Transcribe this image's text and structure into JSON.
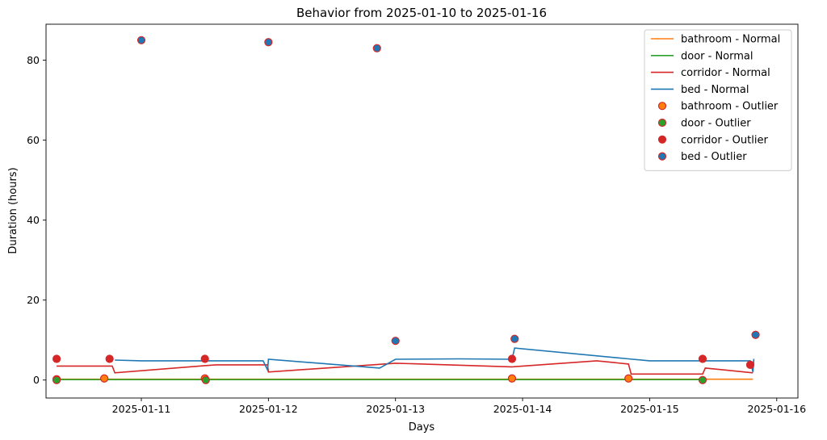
{
  "chart_data": {
    "type": "line",
    "title": "Behavior from 2025-01-10 to 2025-01-16",
    "xlabel": "Days",
    "ylabel": "Duration (hours)",
    "x_axis_type": "date",
    "xlim": [
      "2025-01-10 06:00",
      "2025-01-16 04:00"
    ],
    "ylim": [
      -4.5,
      89
    ],
    "xticks": [
      "2025-01-11",
      "2025-01-12",
      "2025-01-13",
      "2025-01-14",
      "2025-01-15",
      "2025-01-16"
    ],
    "yticks": [
      0,
      20,
      40,
      60,
      80
    ],
    "legend_position": "top-right",
    "grid": false,
    "series": [
      {
        "name": "bathroom - Normal",
        "kind": "line",
        "color": "#ff7f0e",
        "points": [
          {
            "x": "2025-01-10 08:00",
            "y": 0.2
          },
          {
            "x": "2025-01-15 19:30",
            "y": 0.2
          }
        ]
      },
      {
        "name": "door - Normal",
        "kind": "line",
        "color": "#2ca02c",
        "points": [
          {
            "x": "2025-01-10 08:00",
            "y": 0.1
          },
          {
            "x": "2025-01-15 10:00",
            "y": 0.1
          }
        ]
      },
      {
        "name": "corridor - Normal",
        "kind": "line",
        "color": "#d62728",
        "points": [
          {
            "x": "2025-01-10 08:00",
            "y": 3.5
          },
          {
            "x": "2025-01-10 18:30",
            "y": 3.5
          },
          {
            "x": "2025-01-10 19:00",
            "y": 1.8
          },
          {
            "x": "2025-01-11 14:00",
            "y": 3.8
          },
          {
            "x": "2025-01-11 23:50",
            "y": 3.8
          },
          {
            "x": "2025-01-12 00:00",
            "y": 2.0
          },
          {
            "x": "2025-01-13 00:00",
            "y": 4.2
          },
          {
            "x": "2025-01-13 22:00",
            "y": 3.3
          },
          {
            "x": "2025-01-14 14:00",
            "y": 4.8
          },
          {
            "x": "2025-01-14 20:00",
            "y": 4.0
          },
          {
            "x": "2025-01-14 20:30",
            "y": 1.5
          },
          {
            "x": "2025-01-15 10:00",
            "y": 1.5
          },
          {
            "x": "2025-01-15 10:30",
            "y": 3.0
          },
          {
            "x": "2025-01-15 19:30",
            "y": 1.8
          }
        ]
      },
      {
        "name": "bed - Normal",
        "kind": "line",
        "color": "#1f77b4",
        "points": [
          {
            "x": "2025-01-10 19:00",
            "y": 5.0
          },
          {
            "x": "2025-01-11 00:00",
            "y": 4.8
          },
          {
            "x": "2025-01-11 23:00",
            "y": 4.8
          },
          {
            "x": "2025-01-11 23:50",
            "y": 2.5
          },
          {
            "x": "2025-01-12 00:00",
            "y": 5.2
          },
          {
            "x": "2025-01-12 21:00",
            "y": 3.0
          },
          {
            "x": "2025-01-13 00:00",
            "y": 5.2
          },
          {
            "x": "2025-01-13 12:00",
            "y": 5.3
          },
          {
            "x": "2025-01-13 22:00",
            "y": 5.2
          },
          {
            "x": "2025-01-13 22:30",
            "y": 8.0
          },
          {
            "x": "2025-01-14 20:00",
            "y": 5.3
          },
          {
            "x": "2025-01-15 00:00",
            "y": 4.8
          },
          {
            "x": "2025-01-15 19:00",
            "y": 4.8
          },
          {
            "x": "2025-01-15 19:30",
            "y": 2.0
          },
          {
            "x": "2025-01-15 19:40",
            "y": 5.3
          }
        ]
      },
      {
        "name": "bathroom - Outlier",
        "kind": "scatter",
        "color": "#ff7f0e",
        "edgecolor": "#d62728",
        "points": [
          {
            "x": "2025-01-10 08:00",
            "y": 0.2
          },
          {
            "x": "2025-01-10 17:00",
            "y": 0.4
          },
          {
            "x": "2025-01-11 12:00",
            "y": 0.4
          },
          {
            "x": "2025-01-13 22:00",
            "y": 0.4
          },
          {
            "x": "2025-01-14 20:00",
            "y": 0.4
          }
        ]
      },
      {
        "name": "door - Outlier",
        "kind": "scatter",
        "color": "#2ca02c",
        "edgecolor": "#d62728",
        "points": [
          {
            "x": "2025-01-10 08:00",
            "y": 0.0
          },
          {
            "x": "2025-01-11 12:10",
            "y": 0.0
          },
          {
            "x": "2025-01-15 10:00",
            "y": 0.0
          }
        ]
      },
      {
        "name": "corridor - Outlier",
        "kind": "scatter",
        "color": "#d62728",
        "edgecolor": "#d62728",
        "points": [
          {
            "x": "2025-01-10 08:00",
            "y": 5.3
          },
          {
            "x": "2025-01-10 18:00",
            "y": 5.3
          },
          {
            "x": "2025-01-11 12:00",
            "y": 5.3
          },
          {
            "x": "2025-01-13 22:00",
            "y": 5.3
          },
          {
            "x": "2025-01-15 10:00",
            "y": 5.3
          },
          {
            "x": "2025-01-15 19:00",
            "y": 3.8
          }
        ]
      },
      {
        "name": "bed - Outlier",
        "kind": "scatter",
        "color": "#1f77b4",
        "edgecolor": "#d62728",
        "points": [
          {
            "x": "2025-01-11 00:00",
            "y": 85.0
          },
          {
            "x": "2025-01-12 00:00",
            "y": 84.5
          },
          {
            "x": "2025-01-12 20:30",
            "y": 83.0
          },
          {
            "x": "2025-01-13 00:00",
            "y": 9.8
          },
          {
            "x": "2025-01-13 22:30",
            "y": 10.3
          },
          {
            "x": "2025-01-15 20:00",
            "y": 11.3
          }
        ]
      }
    ]
  }
}
